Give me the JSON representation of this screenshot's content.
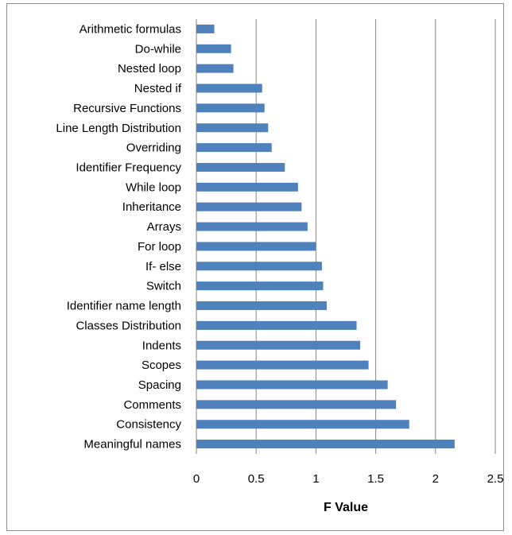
{
  "chart_data": {
    "type": "bar",
    "orientation": "horizontal",
    "categories": [
      "Arithmetic  formulas",
      "Do-while",
      "Nested loop",
      "Nested if",
      "Recursive Functions",
      "Line Length Distribution",
      "Overriding",
      "Identifier Frequency",
      "While loop",
      "Inheritance",
      "Arrays",
      "For loop",
      "If- else",
      "Switch",
      "Identifier name length",
      "Classes Distribution",
      "Indents",
      "Scopes",
      "Spacing",
      "Comments",
      "Consistency",
      "Meaningful names"
    ],
    "values": [
      0.15,
      0.29,
      0.31,
      0.55,
      0.57,
      0.6,
      0.63,
      0.74,
      0.85,
      0.88,
      0.93,
      1.0,
      1.05,
      1.06,
      1.09,
      1.34,
      1.37,
      1.44,
      1.6,
      1.67,
      1.78,
      2.16
    ],
    "xlabel": "F Value",
    "xlim": [
      0,
      2.5
    ],
    "xticks": [
      "0",
      "0.5",
      "1",
      "1.5",
      "2",
      "2.5"
    ],
    "xtick_values": [
      0,
      0.5,
      1,
      1.5,
      2,
      2.5
    ],
    "grid": "vertical",
    "bar_color": "#4F81BD",
    "grid_color": "#868686"
  }
}
